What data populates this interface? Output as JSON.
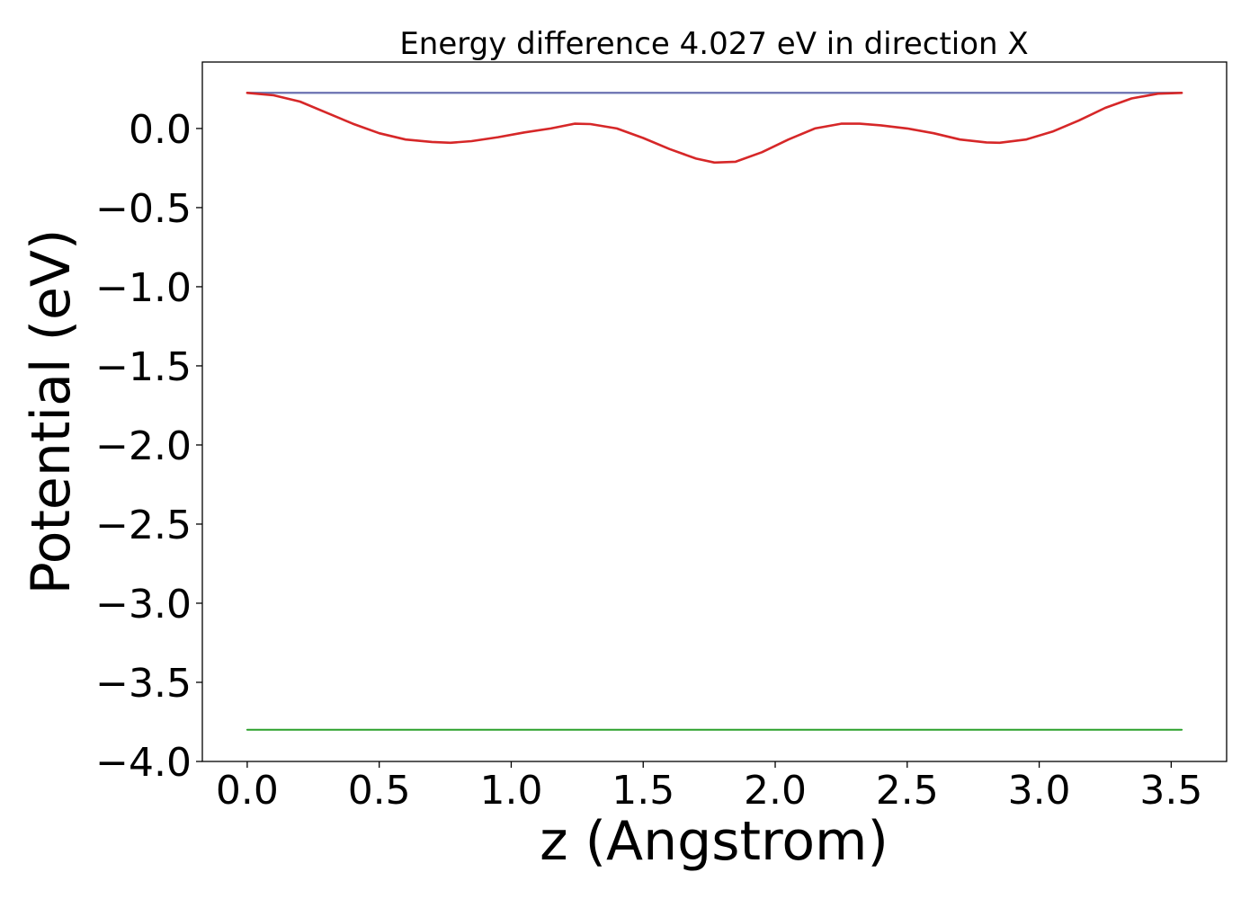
{
  "chart_data": {
    "type": "line",
    "title": "Energy difference 4.027 eV in direction X",
    "xlabel": "z (Angstrom)",
    "ylabel": "Potential (eV)",
    "xlim": [
      -0.17,
      3.71
    ],
    "ylim": [
      -4.0,
      0.42
    ],
    "xticks": [
      0.0,
      0.5,
      1.0,
      1.5,
      2.0,
      2.5,
      3.0,
      3.5
    ],
    "xtick_labels": [
      "0.0",
      "0.5",
      "1.0",
      "1.5",
      "2.0",
      "2.5",
      "3.0",
      "3.5"
    ],
    "yticks": [
      0.0,
      -0.5,
      -1.0,
      -1.5,
      -2.0,
      -2.5,
      -3.0,
      -3.5,
      -4.0
    ],
    "ytick_labels": [
      "0.0",
      "−0.5",
      "−1.0",
      "−1.5",
      "−2.0",
      "−2.5",
      "−3.0",
      "−3.5",
      "−4.0"
    ],
    "grid": false,
    "series": [
      {
        "color": "#1f77b4",
        "x": [
          0.0,
          3.54
        ],
        "y": [
          0.225,
          0.225
        ]
      },
      {
        "color": "#2ca02c",
        "x": [
          0.0,
          3.54
        ],
        "y": [
          -3.8,
          -3.8
        ]
      },
      {
        "color": "#7070b0",
        "x": [
          0.0,
          3.54
        ],
        "y": [
          0.225,
          0.225
        ]
      },
      {
        "color": "#d62728",
        "x": [
          0.0,
          0.1,
          0.2,
          0.3,
          0.4,
          0.5,
          0.6,
          0.7,
          0.77,
          0.85,
          0.95,
          1.05,
          1.15,
          1.24,
          1.3,
          1.4,
          1.5,
          1.6,
          1.7,
          1.77,
          1.85,
          1.95,
          2.05,
          2.15,
          2.25,
          2.32,
          2.4,
          2.5,
          2.6,
          2.7,
          2.8,
          2.85,
          2.95,
          3.05,
          3.15,
          3.25,
          3.35,
          3.45,
          3.54
        ],
        "y": [
          0.225,
          0.21,
          0.17,
          0.1,
          0.03,
          -0.03,
          -0.07,
          -0.085,
          -0.09,
          -0.08,
          -0.055,
          -0.025,
          0.0,
          0.03,
          0.028,
          0.0,
          -0.06,
          -0.13,
          -0.19,
          -0.215,
          -0.21,
          -0.15,
          -0.07,
          0.0,
          0.03,
          0.03,
          0.02,
          0.0,
          -0.03,
          -0.07,
          -0.088,
          -0.09,
          -0.07,
          -0.02,
          0.05,
          0.13,
          0.19,
          0.22,
          0.225
        ]
      }
    ]
  }
}
